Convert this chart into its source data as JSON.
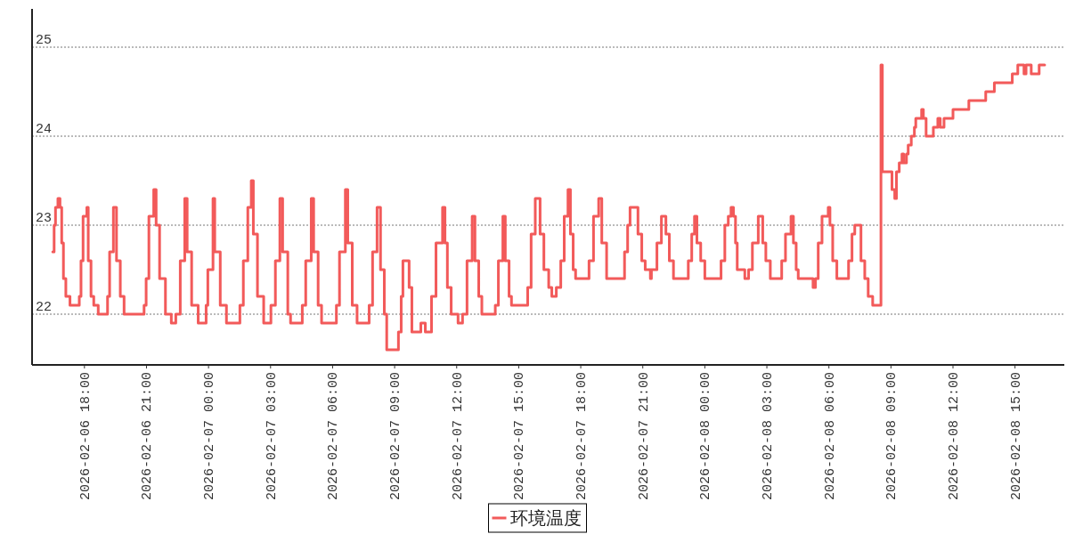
{
  "chart_data": {
    "type": "step",
    "xlim": [
      "2026-02-06T15:28",
      "2026-02-08T17:23"
    ],
    "ylim": [
      21.43,
      25.43
    ],
    "yticks": [
      22,
      23,
      24,
      25
    ],
    "xticks": [
      {
        "value": "2026-02-06T18:00",
        "label": "2026-02-06 18:00"
      },
      {
        "value": "2026-02-06T21:00",
        "label": "2026-02-06 21:00"
      },
      {
        "value": "2026-02-07T00:00",
        "label": "2026-02-07 00:00"
      },
      {
        "value": "2026-02-07T03:00",
        "label": "2026-02-07 03:00"
      },
      {
        "value": "2026-02-07T06:00",
        "label": "2026-02-07 06:00"
      },
      {
        "value": "2026-02-07T09:00",
        "label": "2026-02-07 09:00"
      },
      {
        "value": "2026-02-07T12:00",
        "label": "2026-02-07 12:00"
      },
      {
        "value": "2026-02-07T15:00",
        "label": "2026-02-07 15:00"
      },
      {
        "value": "2026-02-07T18:00",
        "label": "2026-02-07 18:00"
      },
      {
        "value": "2026-02-07T21:00",
        "label": "2026-02-07 21:00"
      },
      {
        "value": "2026-02-08T00:00",
        "label": "2026-02-08 00:00"
      },
      {
        "value": "2026-02-08T03:00",
        "label": "2026-02-08 03:00"
      },
      {
        "value": "2026-02-08T06:00",
        "label": "2026-02-08 06:00"
      },
      {
        "value": "2026-02-08T09:00",
        "label": "2026-02-08 09:00"
      },
      {
        "value": "2026-02-08T12:00",
        "label": "2026-02-08 12:00"
      },
      {
        "value": "2026-02-08T15:00",
        "label": "2026-02-08 15:00"
      }
    ],
    "grid": "y",
    "legend": "bottom",
    "marker": "none",
    "line_style": "solid",
    "series": [
      {
        "name": "环境温度",
        "color": "#f25a5a",
        "x": [
          "2026-02-06T16:28",
          "2026-02-06T16:32",
          "2026-02-06T16:36",
          "2026-02-06T16:43",
          "2026-02-06T16:49",
          "2026-02-06T16:54",
          "2026-02-06T16:59",
          "2026-02-06T17:06",
          "2026-02-06T17:18",
          "2026-02-06T17:45",
          "2026-02-06T17:50",
          "2026-02-06T17:56",
          "2026-02-06T18:07",
          "2026-02-06T18:11",
          "2026-02-06T18:19",
          "2026-02-06T18:27",
          "2026-02-06T18:40",
          "2026-02-06T19:07",
          "2026-02-06T19:13",
          "2026-02-06T19:24",
          "2026-02-06T19:33",
          "2026-02-06T19:44",
          "2026-02-06T19:55",
          "2026-02-06T20:53",
          "2026-02-06T20:59",
          "2026-02-06T21:07",
          "2026-02-06T21:21",
          "2026-02-06T21:28",
          "2026-02-06T21:38",
          "2026-02-06T21:55",
          "2026-02-06T22:12",
          "2026-02-06T22:25",
          "2026-02-06T22:38",
          "2026-02-06T22:51",
          "2026-02-06T22:58",
          "2026-02-06T23:11",
          "2026-02-06T23:30",
          "2026-02-06T23:53",
          "2026-02-06T23:58",
          "2026-02-07T00:13",
          "2026-02-07T00:18",
          "2026-02-07T00:34",
          "2026-02-07T00:52",
          "2026-02-07T01:31",
          "2026-02-07T01:41",
          "2026-02-07T01:54",
          "2026-02-07T02:04",
          "2026-02-07T02:10",
          "2026-02-07T02:22",
          "2026-02-07T02:40",
          "2026-02-07T03:01",
          "2026-02-07T03:14",
          "2026-02-07T03:27",
          "2026-02-07T03:35",
          "2026-02-07T03:50",
          "2026-02-07T03:58",
          "2026-02-07T04:32",
          "2026-02-07T04:42",
          "2026-02-07T04:58",
          "2026-02-07T05:05",
          "2026-02-07T05:18",
          "2026-02-07T05:28",
          "2026-02-07T06:11",
          "2026-02-07T06:20",
          "2026-02-07T06:37",
          "2026-02-07T06:44",
          "2026-02-07T06:57",
          "2026-02-07T07:11",
          "2026-02-07T07:46",
          "2026-02-07T07:56",
          "2026-02-07T08:09",
          "2026-02-07T08:19",
          "2026-02-07T08:30",
          "2026-02-07T08:37",
          "2026-02-07T09:11",
          "2026-02-07T09:19",
          "2026-02-07T09:24",
          "2026-02-07T09:42",
          "2026-02-07T09:50",
          "2026-02-07T10:16",
          "2026-02-07T10:29",
          "2026-02-07T10:47",
          "2026-02-07T11:00",
          "2026-02-07T11:19",
          "2026-02-07T11:26",
          "2026-02-07T11:33",
          "2026-02-07T11:44",
          "2026-02-07T12:04",
          "2026-02-07T12:17",
          "2026-02-07T12:30",
          "2026-02-07T12:45",
          "2026-02-07T12:53",
          "2026-02-07T13:04",
          "2026-02-07T13:13",
          "2026-02-07T13:52",
          "2026-02-07T14:01",
          "2026-02-07T14:14",
          "2026-02-07T14:21",
          "2026-02-07T14:32",
          "2026-02-07T14:39",
          "2026-02-07T15:26",
          "2026-02-07T15:36",
          "2026-02-07T15:48",
          "2026-02-07T16:02",
          "2026-02-07T16:13",
          "2026-02-07T16:27",
          "2026-02-07T16:36",
          "2026-02-07T16:49",
          "2026-02-07T17:02",
          "2026-02-07T17:12",
          "2026-02-07T17:23",
          "2026-02-07T17:30",
          "2026-02-07T17:38",
          "2026-02-07T17:45",
          "2026-02-07T18:24",
          "2026-02-07T18:37",
          "2026-02-07T18:52",
          "2026-02-07T19:01",
          "2026-02-07T19:15",
          "2026-02-07T20:07",
          "2026-02-07T20:16",
          "2026-02-07T20:23",
          "2026-02-07T20:46",
          "2026-02-07T20:57",
          "2026-02-07T21:07",
          "2026-02-07T21:22",
          "2026-02-07T21:25",
          "2026-02-07T21:41",
          "2026-02-07T21:54",
          "2026-02-07T22:07",
          "2026-02-07T22:17",
          "2026-02-07T22:29",
          "2026-02-07T23:12",
          "2026-02-07T23:22",
          "2026-02-07T23:30",
          "2026-02-07T23:37",
          "2026-02-07T23:48",
          "2026-02-08T00:00",
          "2026-02-08T00:47",
          "2026-02-08T00:58",
          "2026-02-08T01:08",
          "2026-02-08T01:16",
          "2026-02-08T01:23",
          "2026-02-08T01:29",
          "2026-02-08T01:34",
          "2026-02-08T01:56",
          "2026-02-08T02:07",
          "2026-02-08T02:18",
          "2026-02-08T02:35",
          "2026-02-08T02:48",
          "2026-02-08T02:57",
          "2026-02-08T03:10",
          "2026-02-08T03:43",
          "2026-02-08T03:54",
          "2026-02-08T04:10",
          "2026-02-08T04:17",
          "2026-02-08T04:25",
          "2026-02-08T04:31",
          "2026-02-08T05:14",
          "2026-02-08T05:21",
          "2026-02-08T05:29",
          "2026-02-08T05:40",
          "2026-02-08T05:58",
          "2026-02-08T06:03",
          "2026-02-08T06:11",
          "2026-02-08T06:23",
          "2026-02-08T06:57",
          "2026-02-08T07:07",
          "2026-02-08T07:15",
          "2026-02-08T07:33",
          "2026-02-08T07:44",
          "2026-02-08T07:54",
          "2026-02-08T08:07",
          "2026-02-08T08:31",
          "2026-02-08T08:35",
          "2026-02-08T09:03",
          "2026-02-08T09:11",
          "2026-02-08T09:16",
          "2026-02-08T09:24",
          "2026-02-08T09:32",
          "2026-02-08T09:37",
          "2026-02-08T09:45",
          "2026-02-08T09:50",
          "2026-02-08T09:59",
          "2026-02-08T10:08",
          "2026-02-08T10:12",
          "2026-02-08T10:29",
          "2026-02-08T10:34",
          "2026-02-08T10:42",
          "2026-02-08T11:03",
          "2026-02-08T11:16",
          "2026-02-08T11:23",
          "2026-02-08T11:34",
          "2026-02-08T12:00",
          "2026-02-08T12:46",
          "2026-02-08T13:35",
          "2026-02-08T14:00",
          "2026-02-08T14:52",
          "2026-02-08T15:08",
          "2026-02-08T15:26",
          "2026-02-08T15:32",
          "2026-02-08T15:47",
          "2026-02-08T16:10",
          "2026-02-08T16:26"
        ],
        "values": [
          22.7,
          23.0,
          23.2,
          23.3,
          23.2,
          22.8,
          22.4,
          22.2,
          22.1,
          22.2,
          22.6,
          23.1,
          23.2,
          22.6,
          22.2,
          22.1,
          22.0,
          22.2,
          22.7,
          23.2,
          22.6,
          22.2,
          22.0,
          22.1,
          22.4,
          23.1,
          23.4,
          23.0,
          22.4,
          22.0,
          21.9,
          22.0,
          22.6,
          23.3,
          22.7,
          22.1,
          21.9,
          22.1,
          22.5,
          23.3,
          22.7,
          22.1,
          21.9,
          22.1,
          22.6,
          23.2,
          23.5,
          22.9,
          22.2,
          21.9,
          22.1,
          22.6,
          23.3,
          22.7,
          22.0,
          21.9,
          22.1,
          22.6,
          23.3,
          22.7,
          22.1,
          21.9,
          22.1,
          22.7,
          23.4,
          22.8,
          22.1,
          21.9,
          22.1,
          22.7,
          23.2,
          22.5,
          22.0,
          21.6,
          21.8,
          22.2,
          22.6,
          22.3,
          21.8,
          21.9,
          21.8,
          22.2,
          22.8,
          23.2,
          22.8,
          22.3,
          22.0,
          21.9,
          22.0,
          22.6,
          23.1,
          22.6,
          22.2,
          22.0,
          22.1,
          22.6,
          23.1,
          22.6,
          22.2,
          22.1,
          22.3,
          22.9,
          23.3,
          22.9,
          22.5,
          22.3,
          22.2,
          22.3,
          22.6,
          23.1,
          23.4,
          22.9,
          22.5,
          22.4,
          22.6,
          23.1,
          23.3,
          22.8,
          22.4,
          22.7,
          23.0,
          23.2,
          22.9,
          22.6,
          22.5,
          22.4,
          22.5,
          22.8,
          23.1,
          22.9,
          22.6,
          22.4,
          22.6,
          22.9,
          23.1,
          22.8,
          22.6,
          22.4,
          22.6,
          23.0,
          23.1,
          23.2,
          23.1,
          22.8,
          22.5,
          22.4,
          22.5,
          22.8,
          23.1,
          22.8,
          22.6,
          22.4,
          22.6,
          22.9,
          23.1,
          22.8,
          22.5,
          22.4,
          22.3,
          22.4,
          22.8,
          23.1,
          23.2,
          23.0,
          22.6,
          22.4,
          22.6,
          22.9,
          23.0,
          22.6,
          22.4,
          22.2,
          22.1,
          24.8,
          23.6,
          23.4,
          23.3,
          23.6,
          23.7,
          23.8,
          23.7,
          23.8,
          23.9,
          24.0,
          24.1,
          24.2,
          24.3,
          24.2,
          24.0,
          24.1,
          24.2,
          24.1,
          24.2,
          24.3,
          24.4,
          24.5,
          24.6,
          24.7,
          24.8,
          24.7,
          24.8,
          24.7,
          24.8,
          24.8
        ]
      }
    ]
  }
}
